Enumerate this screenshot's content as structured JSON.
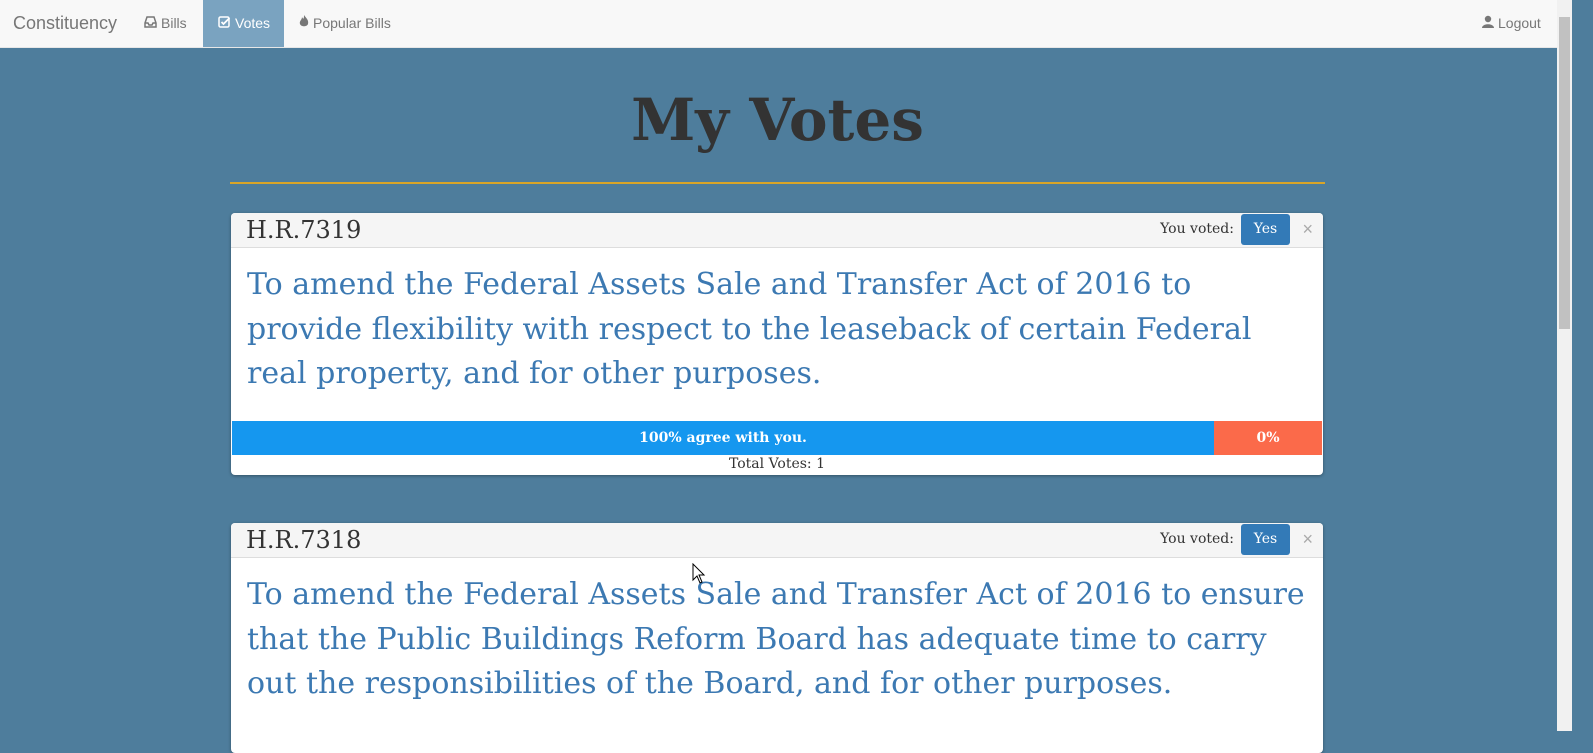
{
  "nav": {
    "brand": "Constituency",
    "items": [
      {
        "label": "Bills",
        "icon": "inbox-icon"
      },
      {
        "label": "Votes",
        "icon": "check-square-icon",
        "active": true
      },
      {
        "label": "Popular Bills",
        "icon": "fire-icon"
      }
    ],
    "logout": {
      "label": "Logout",
      "icon": "user-icon"
    }
  },
  "page": {
    "title": "My Votes"
  },
  "colors": {
    "background": "#4e7d9c",
    "accent_rule": "#d9a528",
    "agree": "#1597ef",
    "disagree": "#fb6a4a",
    "vote_button": "#337ab7",
    "bill_text": "#3c79b2"
  },
  "bills": [
    {
      "id": "H.R.7319",
      "voted_label": "You voted:",
      "vote": "Yes",
      "title": "To amend the Federal Assets Sale and Transfer Act of 2016 to provide flexibility with respect to the leaseback of certain Federal real property, and for other purposes.",
      "agree_percent": 100,
      "agree_text": "100% agree with you.",
      "disagree_text": "0%",
      "total_votes": "Total Votes: 1"
    },
    {
      "id": "H.R.7318",
      "voted_label": "You voted:",
      "vote": "Yes",
      "title": "To amend the Federal Assets Sale and Transfer Act of 2016 to ensure that the Public Buildings Reform Board has adequate time to carry out the responsibilities of the Board, and for other purposes."
    }
  ]
}
